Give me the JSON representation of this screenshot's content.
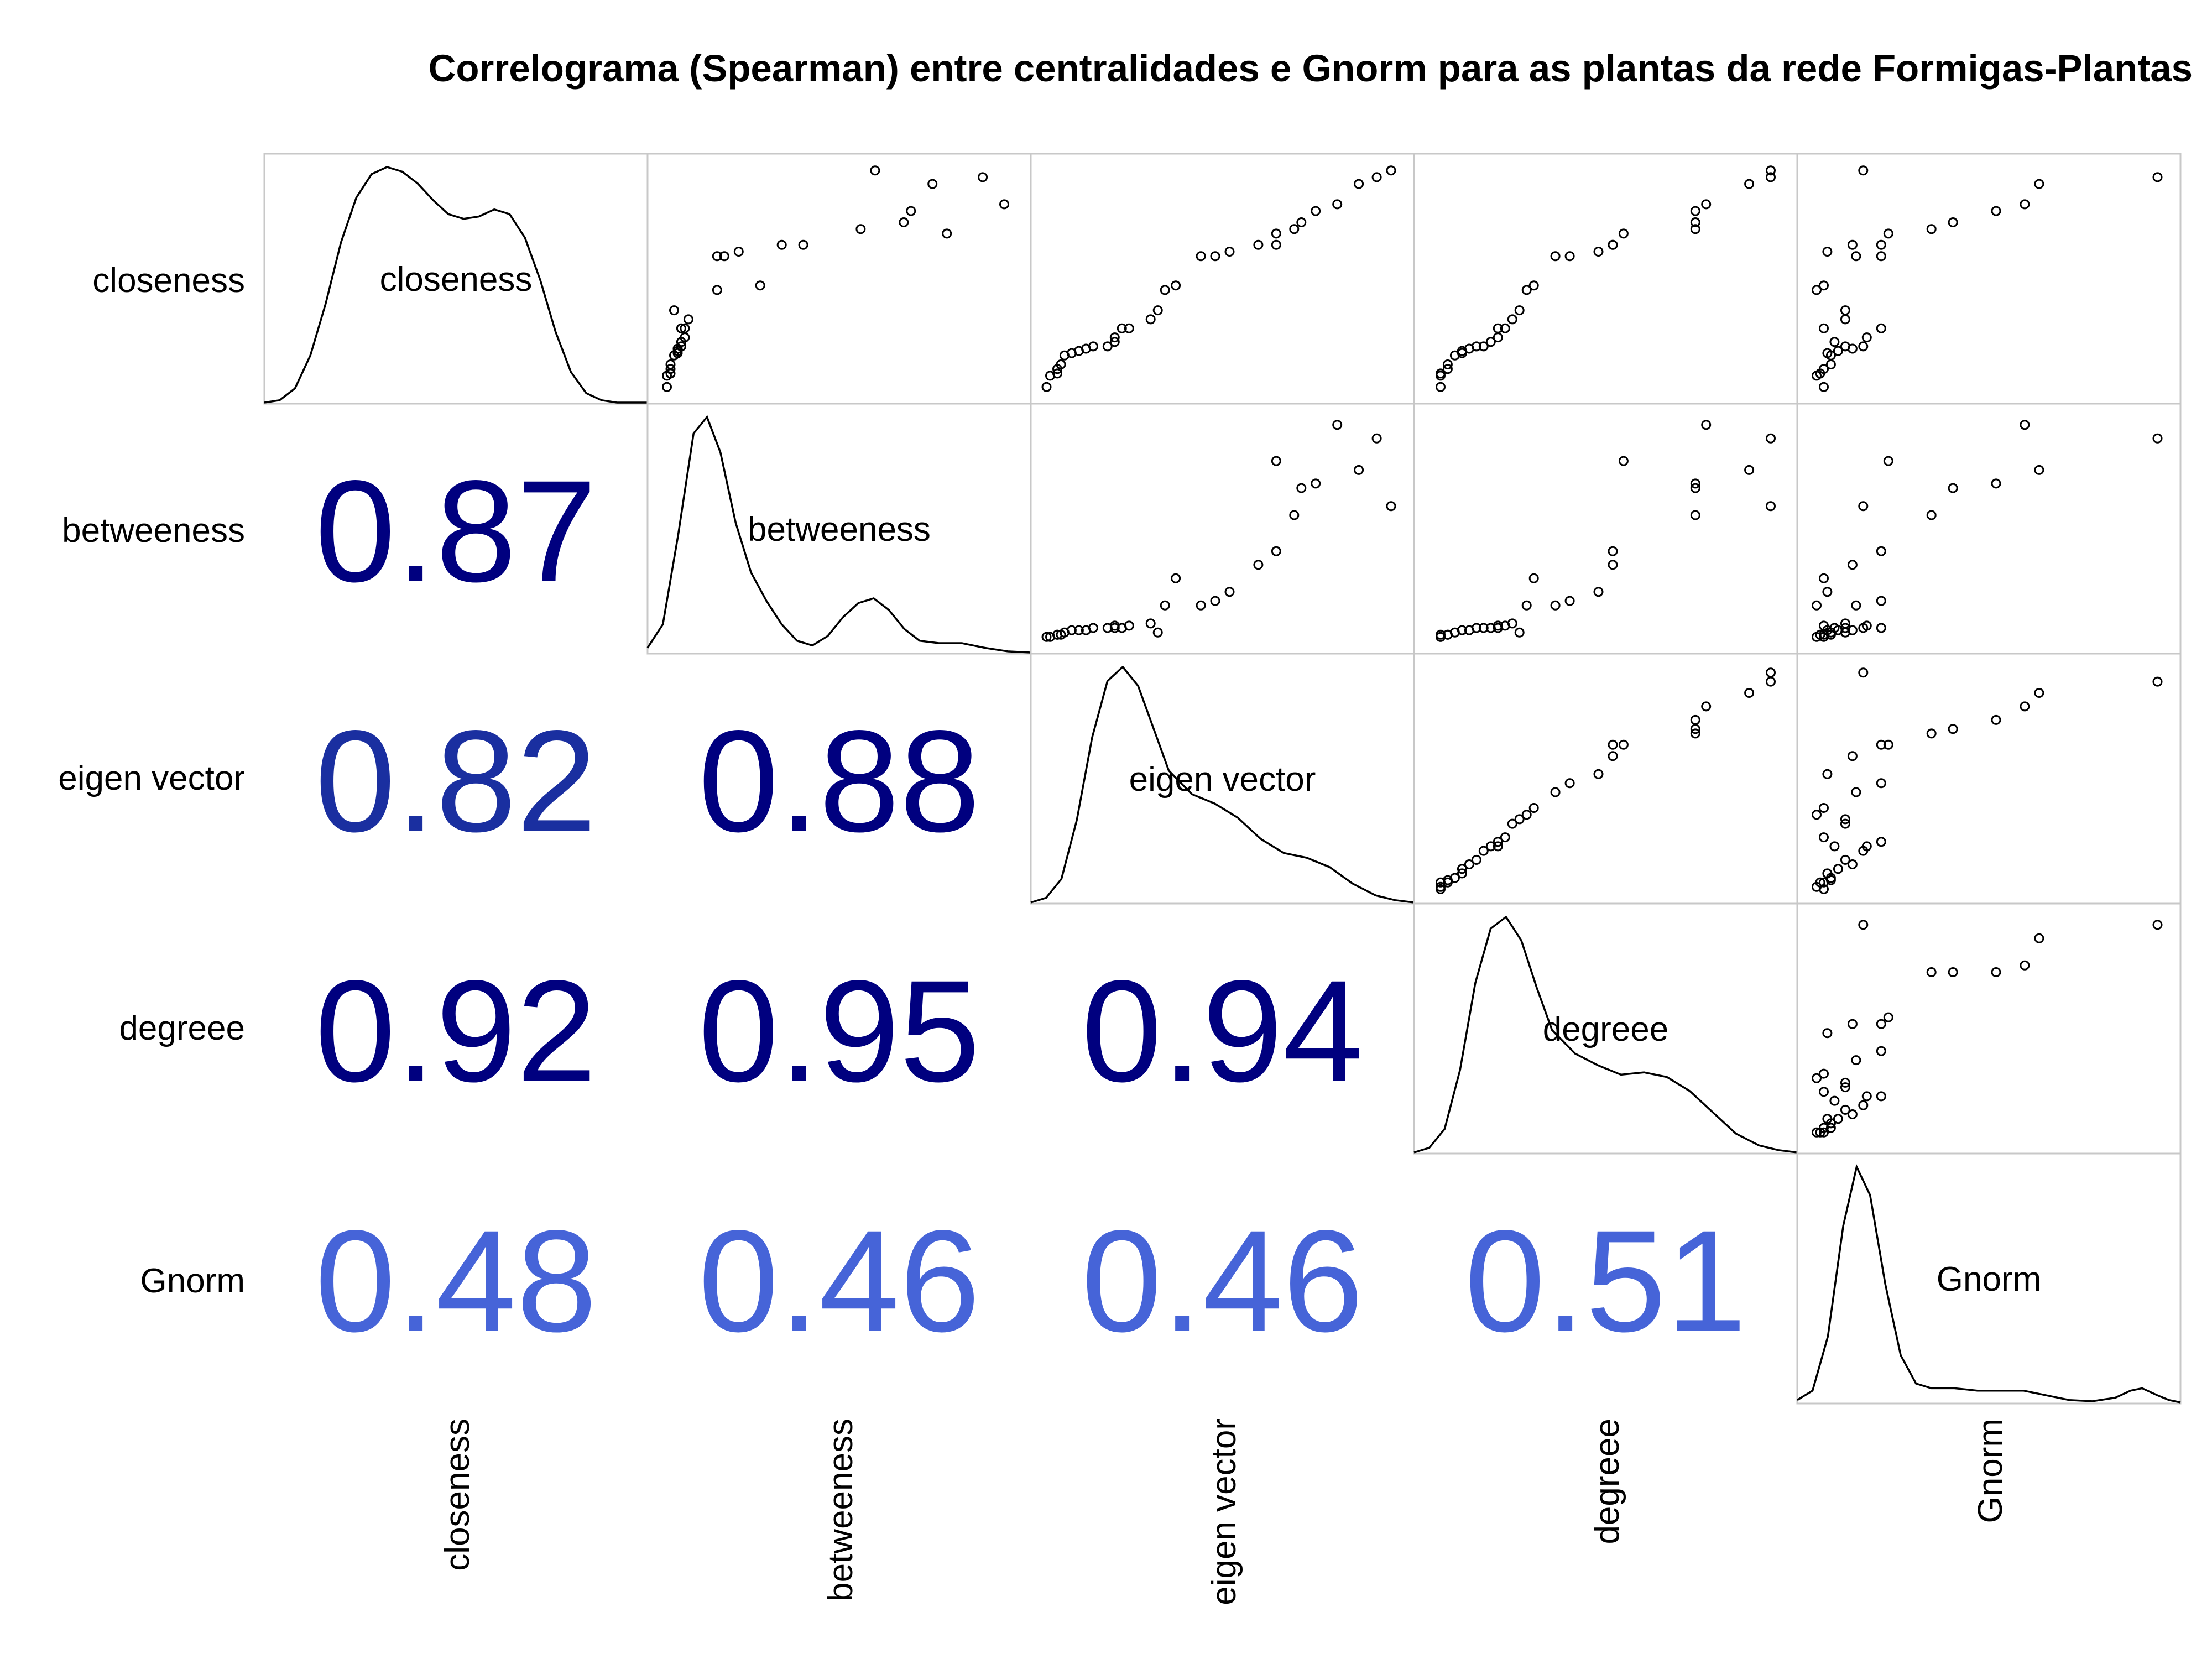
{
  "chart_data": {
    "type": "scatter-matrix",
    "title": "Correlograma (Spearman) entre centralidades e Gnorm para as plantas da rede Formigas-Plantas",
    "variables": [
      "closeness",
      "betweeness",
      "eigen vector",
      "degreee",
      "Gnorm"
    ],
    "correlations": [
      {
        "row": 1,
        "col": 0,
        "value": "0.87"
      },
      {
        "row": 2,
        "col": 0,
        "value": "0.82"
      },
      {
        "row": 2,
        "col": 1,
        "value": "0.88"
      },
      {
        "row": 3,
        "col": 0,
        "value": "0.92"
      },
      {
        "row": 3,
        "col": 1,
        "value": "0.95"
      },
      {
        "row": 3,
        "col": 2,
        "value": "0.94"
      },
      {
        "row": 4,
        "col": 0,
        "value": "0.48"
      },
      {
        "row": 4,
        "col": 1,
        "value": "0.46"
      },
      {
        "row": 4,
        "col": 2,
        "value": "0.46"
      },
      {
        "row": 4,
        "col": 3,
        "value": "0.51"
      }
    ],
    "color_scale": {
      "high": "#00007f",
      "mid": "#1a2fa0",
      "low": "#4664d8"
    },
    "densities": {
      "closeness": [
        [
          0,
          0
        ],
        [
          0.04,
          0.01
        ],
        [
          0.08,
          0.06
        ],
        [
          0.12,
          0.2
        ],
        [
          0.16,
          0.42
        ],
        [
          0.2,
          0.68
        ],
        [
          0.24,
          0.87
        ],
        [
          0.28,
          0.97
        ],
        [
          0.32,
          1.0
        ],
        [
          0.36,
          0.98
        ],
        [
          0.4,
          0.93
        ],
        [
          0.44,
          0.86
        ],
        [
          0.48,
          0.8
        ],
        [
          0.52,
          0.78
        ],
        [
          0.56,
          0.79
        ],
        [
          0.6,
          0.82
        ],
        [
          0.64,
          0.8
        ],
        [
          0.68,
          0.7
        ],
        [
          0.72,
          0.52
        ],
        [
          0.76,
          0.3
        ],
        [
          0.8,
          0.13
        ],
        [
          0.84,
          0.04
        ],
        [
          0.88,
          0.01
        ],
        [
          0.92,
          0
        ],
        [
          1,
          0
        ]
      ],
      "betweeness": [
        [
          0,
          0.02
        ],
        [
          0.04,
          0.12
        ],
        [
          0.08,
          0.5
        ],
        [
          0.12,
          0.93
        ],
        [
          0.155,
          1.0
        ],
        [
          0.19,
          0.85
        ],
        [
          0.23,
          0.55
        ],
        [
          0.27,
          0.34
        ],
        [
          0.31,
          0.22
        ],
        [
          0.35,
          0.12
        ],
        [
          0.39,
          0.05
        ],
        [
          0.43,
          0.03
        ],
        [
          0.47,
          0.07
        ],
        [
          0.51,
          0.15
        ],
        [
          0.55,
          0.21
        ],
        [
          0.59,
          0.23
        ],
        [
          0.63,
          0.18
        ],
        [
          0.67,
          0.1
        ],
        [
          0.71,
          0.05
        ],
        [
          0.76,
          0.04
        ],
        [
          0.82,
          0.04
        ],
        [
          0.88,
          0.02
        ],
        [
          0.94,
          0.005
        ],
        [
          1,
          0
        ]
      ],
      "eigen vector": [
        [
          0,
          0
        ],
        [
          0.04,
          0.02
        ],
        [
          0.08,
          0.1
        ],
        [
          0.12,
          0.35
        ],
        [
          0.16,
          0.7
        ],
        [
          0.2,
          0.94
        ],
        [
          0.24,
          1.0
        ],
        [
          0.28,
          0.92
        ],
        [
          0.32,
          0.74
        ],
        [
          0.36,
          0.56
        ],
        [
          0.42,
          0.46
        ],
        [
          0.48,
          0.42
        ],
        [
          0.54,
          0.36
        ],
        [
          0.6,
          0.27
        ],
        [
          0.66,
          0.21
        ],
        [
          0.72,
          0.19
        ],
        [
          0.78,
          0.15
        ],
        [
          0.84,
          0.08
        ],
        [
          0.9,
          0.03
        ],
        [
          0.95,
          0.01
        ],
        [
          1,
          0
        ]
      ],
      "degreee": [
        [
          0,
          0
        ],
        [
          0.04,
          0.02
        ],
        [
          0.08,
          0.1
        ],
        [
          0.12,
          0.35
        ],
        [
          0.16,
          0.72
        ],
        [
          0.2,
          0.95
        ],
        [
          0.24,
          1.0
        ],
        [
          0.28,
          0.9
        ],
        [
          0.32,
          0.7
        ],
        [
          0.36,
          0.52
        ],
        [
          0.42,
          0.42
        ],
        [
          0.48,
          0.37
        ],
        [
          0.54,
          0.33
        ],
        [
          0.6,
          0.34
        ],
        [
          0.66,
          0.32
        ],
        [
          0.72,
          0.26
        ],
        [
          0.78,
          0.17
        ],
        [
          0.84,
          0.08
        ],
        [
          0.9,
          0.03
        ],
        [
          0.95,
          0.01
        ],
        [
          1,
          0
        ]
      ],
      "Gnorm": [
        [
          0,
          0.01
        ],
        [
          0.04,
          0.05
        ],
        [
          0.08,
          0.28
        ],
        [
          0.12,
          0.75
        ],
        [
          0.155,
          1.0
        ],
        [
          0.19,
          0.88
        ],
        [
          0.23,
          0.5
        ],
        [
          0.27,
          0.2
        ],
        [
          0.31,
          0.08
        ],
        [
          0.35,
          0.06
        ],
        [
          0.41,
          0.06
        ],
        [
          0.47,
          0.05
        ],
        [
          0.53,
          0.05
        ],
        [
          0.59,
          0.05
        ],
        [
          0.65,
          0.03
        ],
        [
          0.71,
          0.01
        ],
        [
          0.77,
          0.005
        ],
        [
          0.83,
          0.02
        ],
        [
          0.87,
          0.05
        ],
        [
          0.9,
          0.06
        ],
        [
          0.94,
          0.03
        ],
        [
          0.97,
          0.01
        ],
        [
          1,
          0
        ]
      ]
    },
    "data": {
      "closeness": [
        0.02,
        0.07,
        0.08,
        0.1,
        0.12,
        0.16,
        0.17,
        0.18,
        0.19,
        0.2,
        0.2,
        0.22,
        0.24,
        0.28,
        0.28,
        0.32,
        0.36,
        0.45,
        0.47,
        0.6,
        0.6,
        0.62,
        0.65,
        0.65,
        0.7,
        0.72,
        0.75,
        0.8,
        0.83,
        0.92,
        0.95,
        0.98
      ],
      "betweeness": [
        0.02,
        0.02,
        0.03,
        0.03,
        0.03,
        0.04,
        0.05,
        0.05,
        0.05,
        0.06,
        0.06,
        0.06,
        0.07,
        0.06,
        0.07,
        0.08,
        0.04,
        0.16,
        0.28,
        0.16,
        0.18,
        0.22,
        0.34,
        0.4,
        0.8,
        0.56,
        0.68,
        0.7,
        0.96,
        0.76,
        0.9,
        0.6
      ],
      "eigen vector": [
        0.01,
        0.02,
        0.04,
        0.04,
        0.05,
        0.06,
        0.08,
        0.1,
        0.12,
        0.14,
        0.18,
        0.2,
        0.2,
        0.22,
        0.24,
        0.3,
        0.32,
        0.34,
        0.37,
        0.44,
        0.48,
        0.52,
        0.6,
        0.65,
        0.65,
        0.7,
        0.72,
        0.76,
        0.82,
        0.88,
        0.93,
        0.97
      ],
      "degreee": [
        0.04,
        0.04,
        0.04,
        0.06,
        0.06,
        0.08,
        0.1,
        0.1,
        0.12,
        0.14,
        0.16,
        0.18,
        0.2,
        0.2,
        0.22,
        0.24,
        0.26,
        0.28,
        0.3,
        0.36,
        0.4,
        0.48,
        0.52,
        0.52,
        0.55,
        0.75,
        0.75,
        0.75,
        0.78,
        0.9,
        0.96,
        0.96
      ],
      "Gnorm": [
        0.04,
        0.02,
        0.03,
        0.04,
        0.06,
        0.06,
        0.05,
        0.08,
        0.12,
        0.1,
        0.15,
        0.07,
        0.16,
        0.2,
        0.04,
        0.1,
        0.1,
        0.02,
        0.04,
        0.13,
        0.2,
        0.05,
        0.12,
        0.2,
        0.22,
        0.34,
        0.4,
        0.52,
        0.6,
        0.64,
        0.97,
        0.15
      ]
    }
  }
}
